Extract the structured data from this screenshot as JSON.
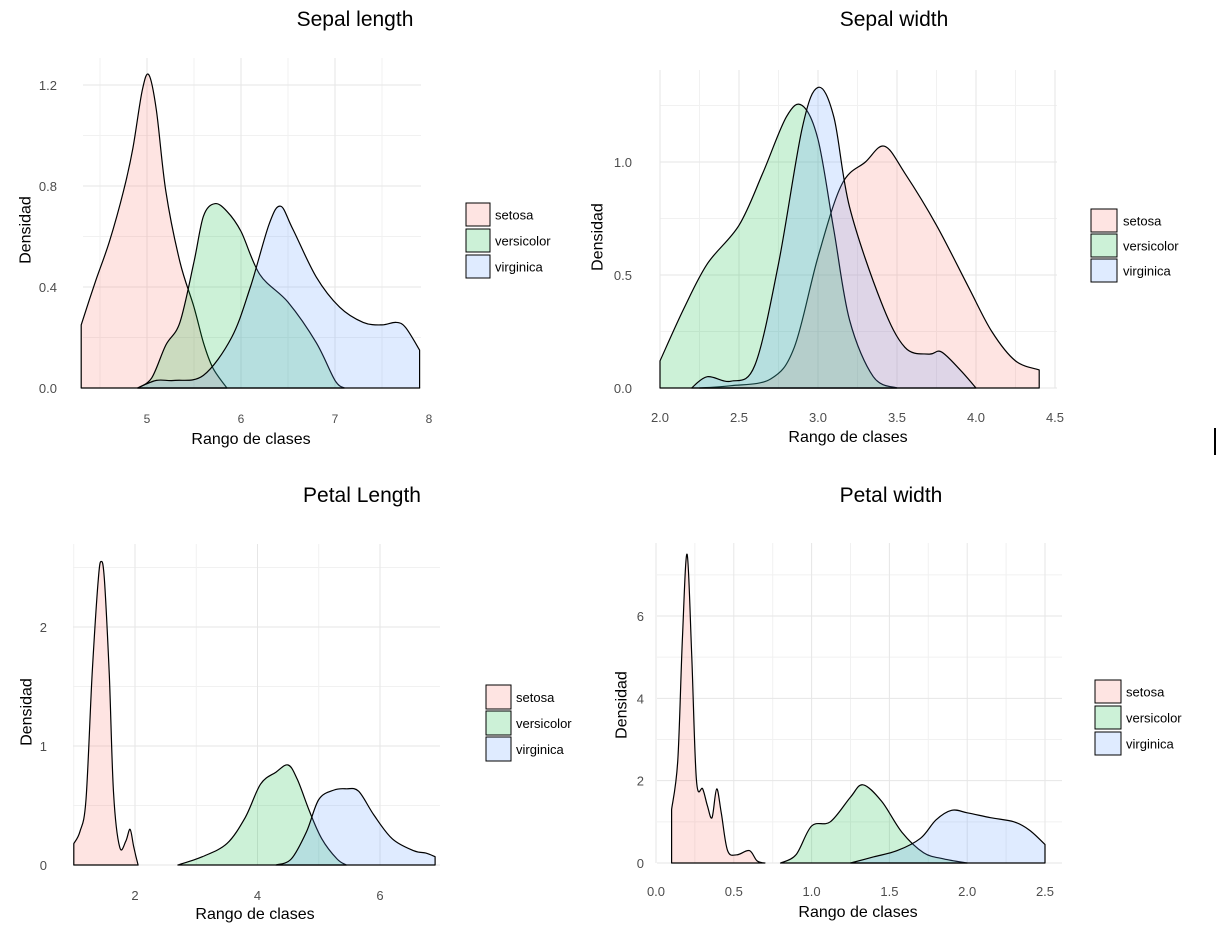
{
  "chart_data": [
    {
      "type": "area",
      "title": "Sepal length",
      "xlabel": "Rango de clases",
      "ylabel": "Densidad",
      "xlim": [
        4.3,
        7.9
      ],
      "ylim": [
        0,
        1.25
      ],
      "xticks": [
        5,
        6,
        7,
        8
      ],
      "yticks": [
        0.0,
        0.4,
        0.8,
        1.2
      ],
      "ytick_labels": [
        "0.0",
        "0.4",
        "0.8",
        "1.2"
      ],
      "grid": true,
      "legend": "right",
      "series": [
        {
          "name": "setosa",
          "color": "#F8766D",
          "points": [
            [
              4.3,
              0.25
            ],
            [
              4.45,
              0.42
            ],
            [
              4.6,
              0.58
            ],
            [
              4.75,
              0.78
            ],
            [
              4.85,
              0.95
            ],
            [
              4.95,
              1.18
            ],
            [
              5.02,
              1.24
            ],
            [
              5.1,
              1.1
            ],
            [
              5.2,
              0.78
            ],
            [
              5.35,
              0.5
            ],
            [
              5.5,
              0.32
            ],
            [
              5.6,
              0.18
            ],
            [
              5.7,
              0.08
            ],
            [
              5.85,
              0.0
            ]
          ]
        },
        {
          "name": "versicolor",
          "color": "#00BA38",
          "points": [
            [
              4.9,
              0.0
            ],
            [
              5.05,
              0.04
            ],
            [
              5.2,
              0.17
            ],
            [
              5.35,
              0.26
            ],
            [
              5.5,
              0.5
            ],
            [
              5.6,
              0.68
            ],
            [
              5.72,
              0.73
            ],
            [
              5.85,
              0.7
            ],
            [
              6.0,
              0.62
            ],
            [
              6.2,
              0.45
            ],
            [
              6.5,
              0.34
            ],
            [
              6.8,
              0.18
            ],
            [
              7.0,
              0.03
            ],
            [
              7.1,
              0.0
            ]
          ]
        },
        {
          "name": "virginica",
          "color": "#619CFF",
          "points": [
            [
              4.9,
              0.0
            ],
            [
              5.1,
              0.03
            ],
            [
              5.3,
              0.03
            ],
            [
              5.6,
              0.05
            ],
            [
              5.9,
              0.2
            ],
            [
              6.1,
              0.4
            ],
            [
              6.3,
              0.65
            ],
            [
              6.42,
              0.72
            ],
            [
              6.55,
              0.63
            ],
            [
              6.8,
              0.44
            ],
            [
              7.05,
              0.32
            ],
            [
              7.3,
              0.26
            ],
            [
              7.5,
              0.25
            ],
            [
              7.65,
              0.26
            ],
            [
              7.75,
              0.24
            ],
            [
              7.9,
              0.15
            ]
          ]
        }
      ]
    },
    {
      "type": "area",
      "title": "Sepal width",
      "xlabel": "Rango de clases",
      "ylabel": "Densidad",
      "xlim": [
        2.0,
        4.4
      ],
      "ylim": [
        0,
        1.35
      ],
      "xticks": [
        2.0,
        2.5,
        3.0,
        3.5,
        4.0,
        4.5
      ],
      "xtick_labels": [
        "2.0",
        "2.5",
        "3.0",
        "3.5",
        "4.0",
        "4.5"
      ],
      "yticks": [
        0.0,
        0.5,
        1.0
      ],
      "ytick_labels": [
        "0.0",
        "0.5",
        "1.0"
      ],
      "grid": true,
      "legend": "right",
      "series": [
        {
          "name": "setosa",
          "color": "#F8766D",
          "points": [
            [
              2.25,
              0.0
            ],
            [
              2.45,
              0.01
            ],
            [
              2.7,
              0.04
            ],
            [
              2.85,
              0.18
            ],
            [
              3.0,
              0.58
            ],
            [
              3.15,
              0.9
            ],
            [
              3.3,
              1.0
            ],
            [
              3.42,
              1.07
            ],
            [
              3.55,
              0.95
            ],
            [
              3.75,
              0.72
            ],
            [
              3.95,
              0.45
            ],
            [
              4.1,
              0.25
            ],
            [
              4.25,
              0.12
            ],
            [
              4.4,
              0.08
            ]
          ]
        },
        {
          "name": "versicolor",
          "color": "#00BA38",
          "points": [
            [
              2.0,
              0.12
            ],
            [
              2.15,
              0.35
            ],
            [
              2.3,
              0.55
            ],
            [
              2.5,
              0.72
            ],
            [
              2.65,
              0.95
            ],
            [
              2.8,
              1.2
            ],
            [
              2.9,
              1.25
            ],
            [
              3.0,
              1.1
            ],
            [
              3.1,
              0.7
            ],
            [
              3.2,
              0.3
            ],
            [
              3.35,
              0.05
            ],
            [
              3.5,
              0.0
            ]
          ]
        },
        {
          "name": "virginica",
          "color": "#619CFF",
          "points": [
            [
              2.2,
              0.0
            ],
            [
              2.3,
              0.05
            ],
            [
              2.45,
              0.03
            ],
            [
              2.6,
              0.1
            ],
            [
              2.75,
              0.55
            ],
            [
              2.9,
              1.15
            ],
            [
              3.0,
              1.33
            ],
            [
              3.1,
              1.2
            ],
            [
              3.2,
              0.8
            ],
            [
              3.4,
              0.38
            ],
            [
              3.55,
              0.18
            ],
            [
              3.7,
              0.15
            ],
            [
              3.78,
              0.16
            ],
            [
              3.9,
              0.08
            ],
            [
              4.0,
              0.0
            ]
          ]
        }
      ]
    },
    {
      "type": "area",
      "title": "Petal Length",
      "xlabel": "Rango de clases",
      "ylabel": "Densidad",
      "xlim": [
        1.0,
        6.9
      ],
      "ylim": [
        0,
        2.55
      ],
      "xticks": [
        2,
        4,
        6
      ],
      "yticks": [
        0,
        1,
        2
      ],
      "grid": true,
      "legend": "right",
      "series": [
        {
          "name": "setosa",
          "color": "#F8766D",
          "points": [
            [
              1.0,
              0.18
            ],
            [
              1.1,
              0.28
            ],
            [
              1.2,
              0.55
            ],
            [
              1.3,
              1.6
            ],
            [
              1.4,
              2.4
            ],
            [
              1.45,
              2.55
            ],
            [
              1.5,
              2.4
            ],
            [
              1.58,
              1.6
            ],
            [
              1.65,
              0.6
            ],
            [
              1.75,
              0.15
            ],
            [
              1.85,
              0.2
            ],
            [
              1.92,
              0.3
            ],
            [
              1.98,
              0.15
            ],
            [
              2.05,
              0.0
            ]
          ]
        },
        {
          "name": "versicolor",
          "color": "#00BA38",
          "points": [
            [
              2.7,
              0.0
            ],
            [
              3.1,
              0.07
            ],
            [
              3.5,
              0.18
            ],
            [
              3.8,
              0.4
            ],
            [
              4.05,
              0.68
            ],
            [
              4.3,
              0.78
            ],
            [
              4.5,
              0.84
            ],
            [
              4.65,
              0.72
            ],
            [
              4.85,
              0.45
            ],
            [
              5.05,
              0.22
            ],
            [
              5.3,
              0.05
            ],
            [
              5.45,
              0.0
            ]
          ]
        },
        {
          "name": "virginica",
          "color": "#619CFF",
          "points": [
            [
              4.3,
              0.0
            ],
            [
              4.55,
              0.05
            ],
            [
              4.8,
              0.28
            ],
            [
              5.0,
              0.55
            ],
            [
              5.25,
              0.63
            ],
            [
              5.45,
              0.64
            ],
            [
              5.65,
              0.62
            ],
            [
              5.9,
              0.42
            ],
            [
              6.2,
              0.22
            ],
            [
              6.55,
              0.12
            ],
            [
              6.75,
              0.1
            ],
            [
              6.9,
              0.07
            ]
          ]
        }
      ]
    },
    {
      "type": "area",
      "title": "Petal width",
      "xlabel": "Rango de clases",
      "ylabel": "Densidad",
      "xlim": [
        0.1,
        2.5
      ],
      "ylim": [
        0,
        7.6
      ],
      "xticks": [
        0.0,
        0.5,
        1.0,
        1.5,
        2.0,
        2.5
      ],
      "xtick_labels": [
        "0.0",
        "0.5",
        "1.0",
        "1.5",
        "2.0",
        "2.5"
      ],
      "yticks": [
        0,
        2,
        4,
        6
      ],
      "grid": true,
      "legend": "right",
      "series": [
        {
          "name": "setosa",
          "color": "#F8766D",
          "points": [
            [
              0.1,
              1.3
            ],
            [
              0.14,
              2.5
            ],
            [
              0.17,
              5.5
            ],
            [
              0.2,
              7.5
            ],
            [
              0.23,
              5.0
            ],
            [
              0.26,
              2.0
            ],
            [
              0.3,
              1.8
            ],
            [
              0.33,
              1.4
            ],
            [
              0.36,
              1.1
            ],
            [
              0.39,
              1.8
            ],
            [
              0.42,
              1.2
            ],
            [
              0.46,
              0.3
            ],
            [
              0.52,
              0.2
            ],
            [
              0.6,
              0.3
            ],
            [
              0.65,
              0.05
            ],
            [
              0.7,
              0.0
            ]
          ]
        },
        {
          "name": "versicolor",
          "color": "#00BA38",
          "points": [
            [
              0.8,
              0.0
            ],
            [
              0.9,
              0.2
            ],
            [
              1.0,
              0.9
            ],
            [
              1.12,
              1.0
            ],
            [
              1.25,
              1.6
            ],
            [
              1.33,
              1.9
            ],
            [
              1.45,
              1.5
            ],
            [
              1.58,
              0.75
            ],
            [
              1.72,
              0.25
            ],
            [
              1.85,
              0.1
            ],
            [
              2.0,
              0.0
            ]
          ]
        },
        {
          "name": "virginica",
          "color": "#619CFF",
          "points": [
            [
              1.25,
              0.0
            ],
            [
              1.4,
              0.15
            ],
            [
              1.55,
              0.3
            ],
            [
              1.7,
              0.6
            ],
            [
              1.8,
              1.05
            ],
            [
              1.9,
              1.28
            ],
            [
              2.0,
              1.22
            ],
            [
              2.15,
              1.1
            ],
            [
              2.3,
              1.0
            ],
            [
              2.4,
              0.8
            ],
            [
              2.5,
              0.45
            ]
          ]
        }
      ]
    }
  ]
}
